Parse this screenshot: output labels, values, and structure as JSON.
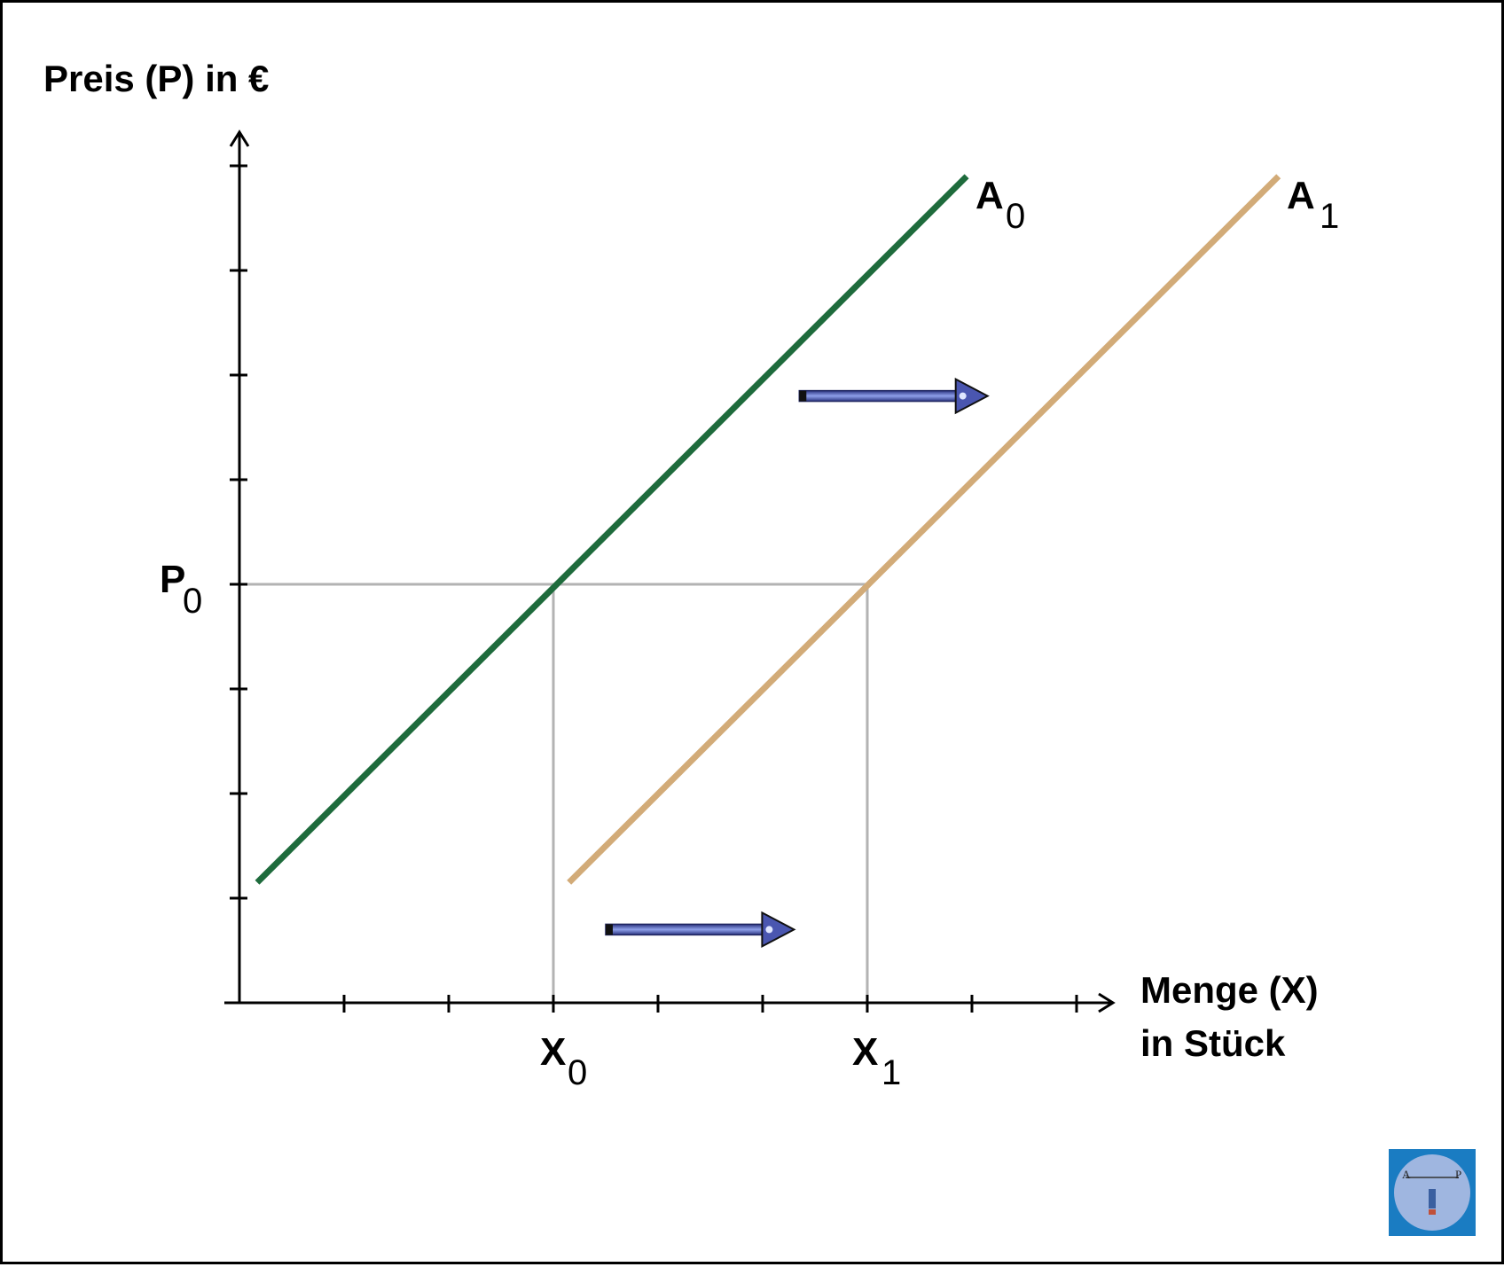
{
  "chart_data": {
    "type": "line",
    "title": "",
    "ylabel": "Preis (P) in €",
    "xlabel_lines": [
      "Menge (X)",
      "in Stück"
    ],
    "xlim": [
      0,
      8.3
    ],
    "ylim": [
      0,
      8.3
    ],
    "x_ticks": [
      1,
      2,
      3,
      4,
      5,
      6,
      7,
      8
    ],
    "y_ticks": [
      1,
      2,
      3,
      4,
      5,
      6,
      7,
      8
    ],
    "series": [
      {
        "name": "A",
        "subscript": "0",
        "color": "#1e6b3c",
        "x": [
          0.17,
          6.95
        ],
        "y": [
          1.15,
          7.9
        ]
      },
      {
        "name": "A",
        "subscript": "1",
        "color": "#d2ab78",
        "x": [
          3.15,
          9.93
        ],
        "y": [
          1.15,
          7.9
        ]
      }
    ],
    "annotations": {
      "p0": {
        "main": "P",
        "sub": "0",
        "y": 4
      },
      "x0": {
        "main": "X",
        "sub": "0",
        "x": 3
      },
      "x1": {
        "main": "X",
        "sub": "1",
        "x": 6
      },
      "reference_line_color": "#b3b3b3",
      "shift_arrows": [
        {
          "from": [
            5.35,
            5.8
          ],
          "to": [
            7.15,
            5.8
          ]
        },
        {
          "from": [
            3.5,
            0.7
          ],
          "to": [
            5.3,
            0.7
          ]
        }
      ],
      "arrow_color": "#4a56b0"
    },
    "grid": false,
    "legend": "none"
  },
  "logo": {
    "letters": [
      "A",
      "P"
    ],
    "bg_color": "#1a7cc2",
    "circle_color": "#9fb6e0"
  }
}
